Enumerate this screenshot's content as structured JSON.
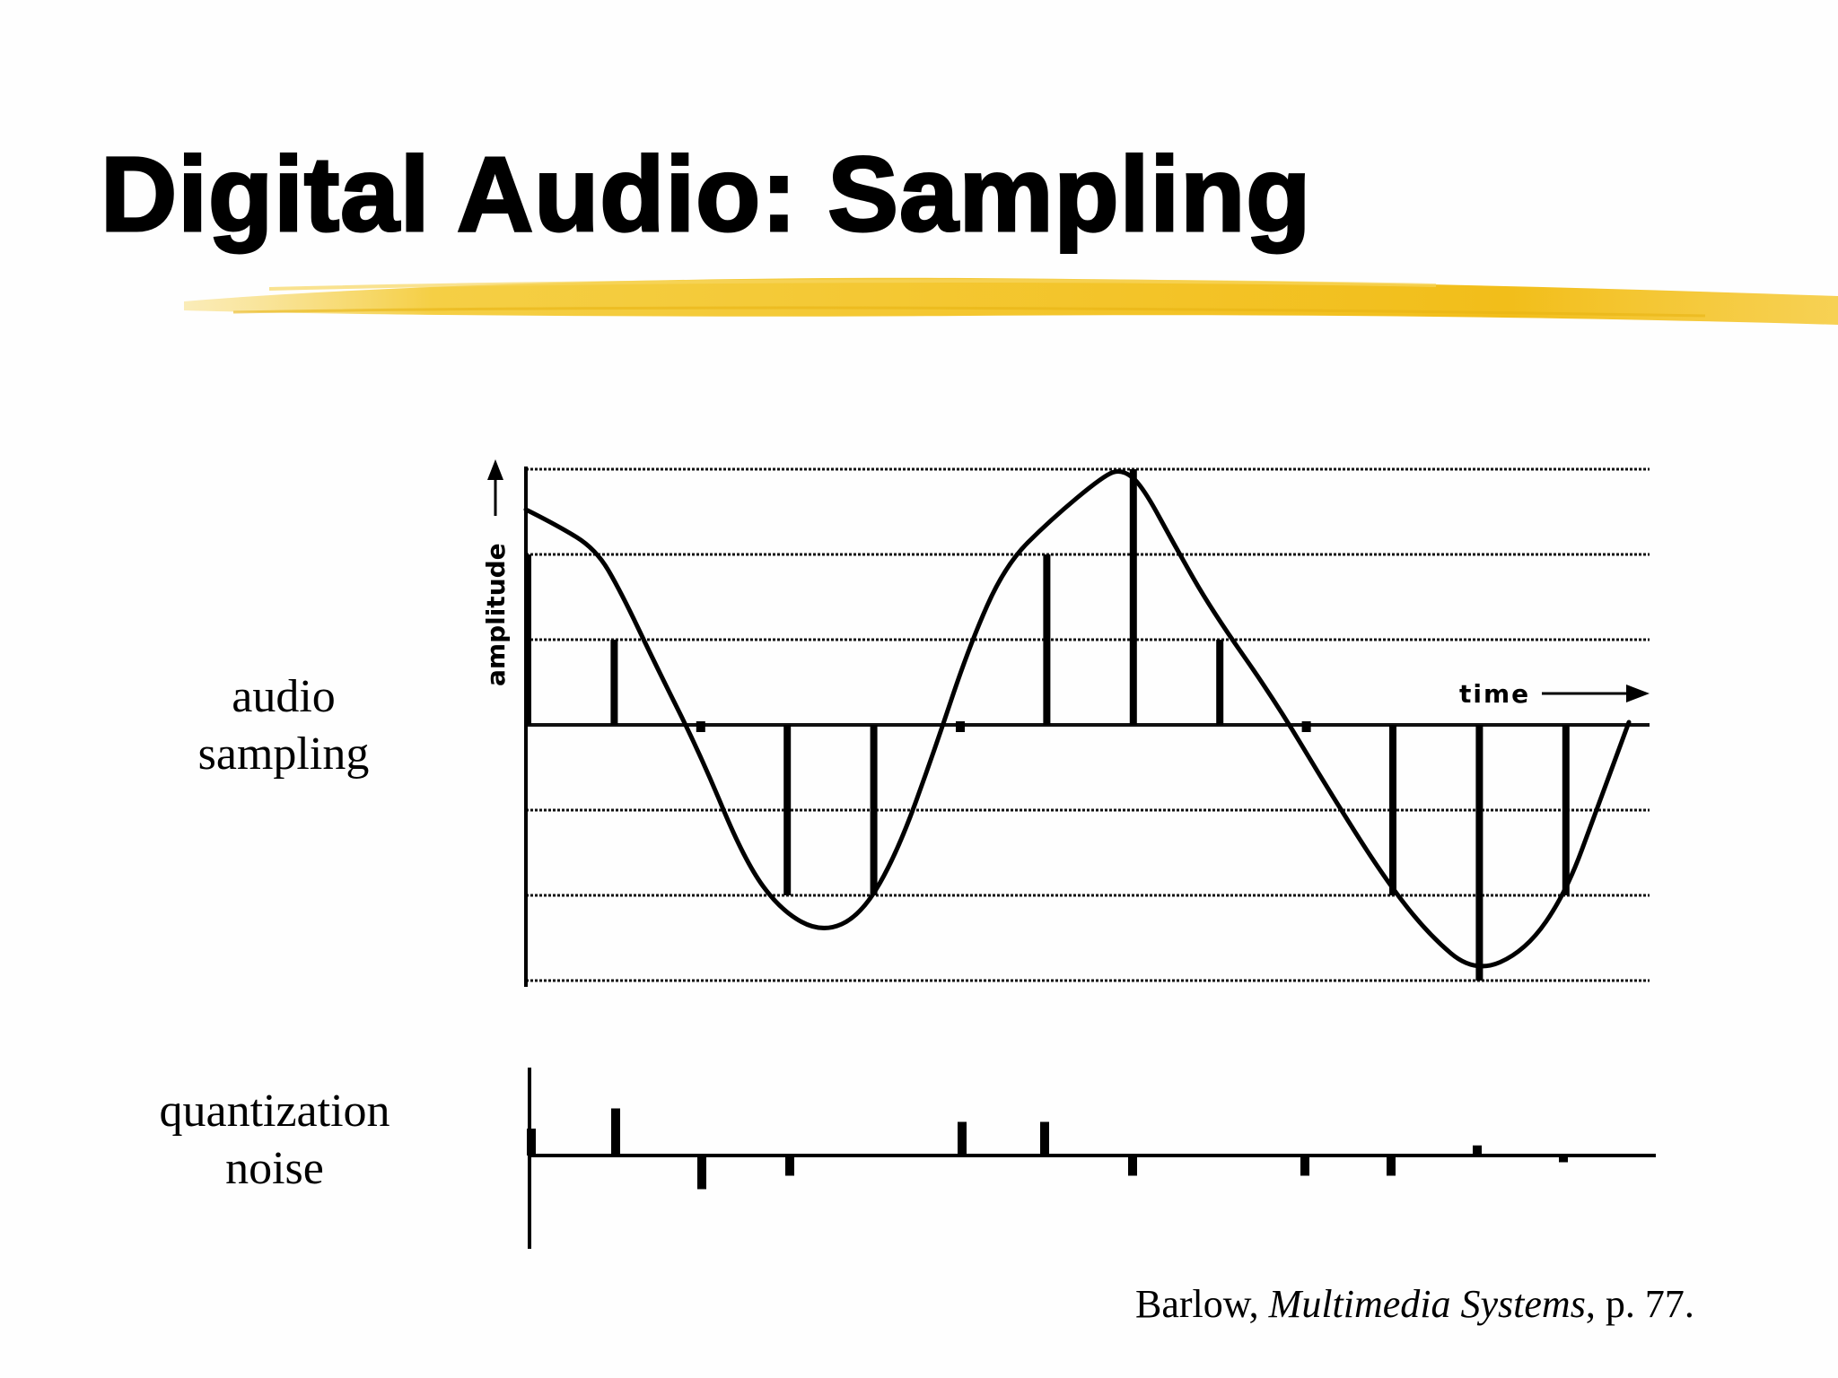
{
  "slide": {
    "title": "Digital Audio: Sampling",
    "accent_color": "#f2bf1c",
    "labels": {
      "audio_line1": "audio",
      "audio_line2": "sampling",
      "noise_line1": "quantization",
      "noise_line2": "noise"
    },
    "citation": {
      "author": "Barlow, ",
      "book": "Multimedia Systems",
      "page": ", p. 77."
    }
  },
  "figure": {
    "y_axis_label": "amplitude",
    "x_axis_label": "time",
    "quantization_levels": [
      3,
      2,
      1,
      0,
      -1,
      -2,
      -3
    ],
    "sampled_levels": [
      2,
      1,
      0,
      -2,
      -2,
      0,
      2,
      3,
      1,
      0,
      -2,
      -3,
      -2
    ],
    "noise_values": [
      0.4,
      0.7,
      -0.5,
      -0.3,
      0.5,
      0.5,
      -0.3,
      -0.3,
      -0.3,
      0.15,
      -0.1
    ],
    "icons": [
      "amplitude-arrow-icon",
      "time-arrow-icon"
    ]
  }
}
